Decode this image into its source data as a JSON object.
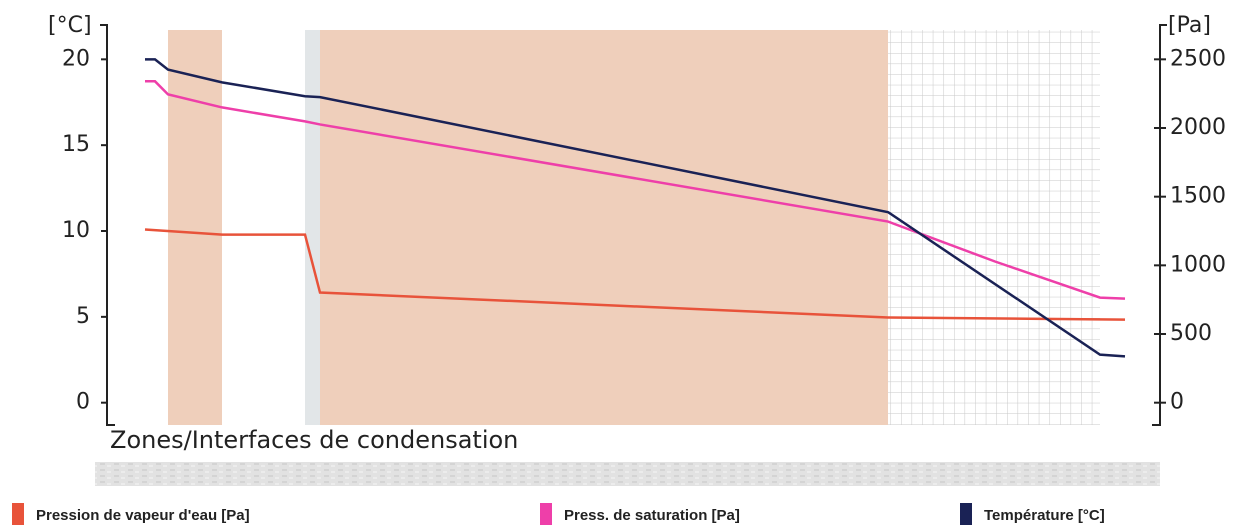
{
  "chart_data": {
    "type": "line",
    "y_label": "[°C]",
    "y2_label": "[Pa]",
    "zone_label": "Zones/Interfaces de condensation",
    "xlim": [
      0,
      1053
    ],
    "ylim": [
      -1.3,
      22
    ],
    "yticks": [
      0,
      5,
      10,
      15,
      20
    ],
    "y2lim": [
      -162.5,
      2750
    ],
    "y2ticks": [
      0,
      500,
      1000,
      1500,
      2000,
      2500
    ],
    "series": [
      {
        "name": "Pression de vapeur d'eau [Pa]",
        "color": "#e8533a",
        "axis": "y2",
        "x": [
          38,
          115,
          198,
          213,
          781,
          1018
        ],
        "values": [
          1261,
          1224,
          1224,
          802,
          620,
          605
        ]
      },
      {
        "name": "Press. de saturation [Pa]",
        "color": "#ee3fa9",
        "axis": "y2",
        "x": [
          38,
          48,
          61,
          115,
          198,
          213,
          781,
          888,
          993,
          1018
        ],
        "values": [
          2340,
          2340,
          2245,
          2150,
          2048,
          2026,
          1319,
          1028,
          765,
          758
        ]
      },
      {
        "name": "Température [°C]",
        "color": "#1a2255",
        "x": [
          38,
          48,
          61,
          115,
          198,
          213,
          781,
          993,
          1018
        ],
        "values": [
          20.0,
          20.0,
          19.4,
          18.66,
          17.85,
          17.8,
          11.1,
          2.8,
          2.7
        ]
      }
    ]
  }
}
